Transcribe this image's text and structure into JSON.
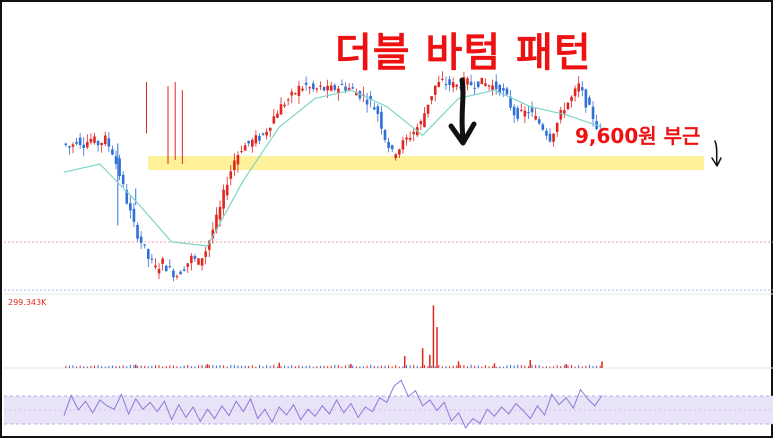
{
  "annotations": {
    "title": "더블 바텀 패턴",
    "level_label": "9,600원 부근",
    "volume_max_label": "299.343K"
  },
  "colors": {
    "title_red": "#ee1111",
    "highlight": "#fff09a",
    "up": "#e0261f",
    "down": "#2f6fd8",
    "moving_average": "#7fd4c8",
    "rsi_line": "#8c7ad9",
    "rsi_band": "#e9e3f8"
  },
  "chart_data": {
    "type": "candlestick",
    "title": "더블 바텀 패턴",
    "xlabel": "",
    "ylabel": "",
    "grid": false,
    "panels": [
      "price",
      "volume",
      "rsi"
    ],
    "price_path": [
      [
        0,
        0.7
      ],
      [
        2,
        0.68
      ],
      [
        4,
        0.72
      ],
      [
        6,
        0.7
      ],
      [
        8,
        0.72
      ],
      [
        10,
        0.7
      ],
      [
        12,
        0.72
      ],
      [
        14,
        0.66
      ],
      [
        16,
        0.55
      ],
      [
        18,
        0.42
      ],
      [
        20,
        0.3
      ],
      [
        22,
        0.22
      ],
      [
        24,
        0.14
      ],
      [
        26,
        0.09
      ],
      [
        28,
        0.12
      ],
      [
        30,
        0.08
      ],
      [
        32,
        0.06
      ],
      [
        34,
        0.1
      ],
      [
        36,
        0.14
      ],
      [
        38,
        0.12
      ],
      [
        40,
        0.18
      ],
      [
        42,
        0.28
      ],
      [
        44,
        0.38
      ],
      [
        46,
        0.52
      ],
      [
        48,
        0.62
      ],
      [
        50,
        0.68
      ],
      [
        52,
        0.7
      ],
      [
        54,
        0.72
      ],
      [
        56,
        0.74
      ],
      [
        58,
        0.8
      ],
      [
        60,
        0.86
      ],
      [
        62,
        0.9
      ],
      [
        64,
        0.93
      ],
      [
        66,
        0.97
      ],
      [
        68,
        0.98
      ],
      [
        70,
        0.96
      ],
      [
        72,
        0.97
      ],
      [
        74,
        0.96
      ],
      [
        76,
        0.97
      ],
      [
        78,
        0.98
      ],
      [
        80,
        0.97
      ],
      [
        82,
        0.95
      ],
      [
        84,
        0.93
      ],
      [
        86,
        0.9
      ],
      [
        88,
        0.85
      ],
      [
        90,
        0.73
      ],
      [
        92,
        0.65
      ],
      [
        94,
        0.68
      ],
      [
        96,
        0.72
      ],
      [
        98,
        0.76
      ],
      [
        100,
        0.8
      ],
      [
        102,
        0.9
      ],
      [
        104,
        0.98
      ],
      [
        106,
        1.0
      ],
      [
        108,
        0.99
      ],
      [
        110,
        0.98
      ],
      [
        112,
        1.0
      ],
      [
        114,
        0.99
      ],
      [
        116,
        1.0
      ],
      [
        118,
        0.99
      ],
      [
        120,
        0.98
      ],
      [
        122,
        0.97
      ],
      [
        124,
        0.92
      ],
      [
        126,
        0.85
      ],
      [
        128,
        0.84
      ],
      [
        130,
        0.86
      ],
      [
        132,
        0.82
      ],
      [
        134,
        0.78
      ],
      [
        136,
        0.73
      ],
      [
        138,
        0.8
      ],
      [
        140,
        0.88
      ],
      [
        142,
        0.92
      ],
      [
        144,
        0.98
      ],
      [
        146,
        0.9
      ],
      [
        148,
        0.83
      ],
      [
        150,
        0.74
      ]
    ],
    "moving_average_path": [
      [
        0,
        0.56
      ],
      [
        10,
        0.6
      ],
      [
        20,
        0.42
      ],
      [
        30,
        0.22
      ],
      [
        40,
        0.2
      ],
      [
        50,
        0.52
      ],
      [
        60,
        0.78
      ],
      [
        70,
        0.92
      ],
      [
        80,
        0.96
      ],
      [
        90,
        0.88
      ],
      [
        100,
        0.74
      ],
      [
        110,
        0.92
      ],
      [
        120,
        0.96
      ],
      [
        130,
        0.88
      ],
      [
        140,
        0.84
      ],
      [
        150,
        0.78
      ]
    ],
    "volume_spikes": [
      [
        20,
        0.05
      ],
      [
        40,
        0.06
      ],
      [
        60,
        0.08
      ],
      [
        80,
        0.06
      ],
      [
        95,
        0.18
      ],
      [
        100,
        0.3
      ],
      [
        102,
        0.2
      ],
      [
        103,
        0.95
      ],
      [
        104,
        0.62
      ],
      [
        110,
        0.1
      ],
      [
        120,
        0.07
      ],
      [
        130,
        0.12
      ],
      [
        140,
        0.06
      ],
      [
        150,
        0.1
      ]
    ],
    "rsi_path": [
      [
        0,
        0.35
      ],
      [
        2,
        0.7
      ],
      [
        4,
        0.45
      ],
      [
        6,
        0.6
      ],
      [
        8,
        0.4
      ],
      [
        10,
        0.62
      ],
      [
        12,
        0.52
      ],
      [
        14,
        0.46
      ],
      [
        16,
        0.72
      ],
      [
        18,
        0.38
      ],
      [
        20,
        0.64
      ],
      [
        22,
        0.46
      ],
      [
        24,
        0.58
      ],
      [
        26,
        0.42
      ],
      [
        28,
        0.6
      ],
      [
        30,
        0.28
      ],
      [
        32,
        0.54
      ],
      [
        34,
        0.32
      ],
      [
        36,
        0.5
      ],
      [
        38,
        0.25
      ],
      [
        40,
        0.46
      ],
      [
        42,
        0.3
      ],
      [
        44,
        0.52
      ],
      [
        46,
        0.35
      ],
      [
        48,
        0.6
      ],
      [
        50,
        0.42
      ],
      [
        52,
        0.64
      ],
      [
        54,
        0.3
      ],
      [
        56,
        0.46
      ],
      [
        58,
        0.24
      ],
      [
        60,
        0.5
      ],
      [
        62,
        0.36
      ],
      [
        64,
        0.54
      ],
      [
        66,
        0.28
      ],
      [
        68,
        0.46
      ],
      [
        70,
        0.34
      ],
      [
        72,
        0.52
      ],
      [
        74,
        0.38
      ],
      [
        76,
        0.62
      ],
      [
        78,
        0.4
      ],
      [
        80,
        0.56
      ],
      [
        82,
        0.32
      ],
      [
        84,
        0.5
      ],
      [
        86,
        0.42
      ],
      [
        88,
        0.66
      ],
      [
        90,
        0.58
      ],
      [
        92,
        0.86
      ],
      [
        94,
        0.96
      ],
      [
        96,
        0.68
      ],
      [
        98,
        0.78
      ],
      [
        100,
        0.52
      ],
      [
        102,
        0.62
      ],
      [
        104,
        0.44
      ],
      [
        106,
        0.58
      ],
      [
        108,
        0.26
      ],
      [
        110,
        0.4
      ],
      [
        112,
        0.14
      ],
      [
        114,
        0.3
      ],
      [
        116,
        0.22
      ],
      [
        118,
        0.46
      ],
      [
        120,
        0.34
      ],
      [
        122,
        0.5
      ],
      [
        124,
        0.38
      ],
      [
        126,
        0.56
      ],
      [
        128,
        0.44
      ],
      [
        130,
        0.3
      ],
      [
        132,
        0.52
      ],
      [
        134,
        0.36
      ],
      [
        136,
        0.72
      ],
      [
        138,
        0.54
      ],
      [
        140,
        0.66
      ],
      [
        142,
        0.48
      ],
      [
        144,
        0.8
      ],
      [
        146,
        0.64
      ],
      [
        148,
        0.52
      ],
      [
        150,
        0.7
      ]
    ],
    "note": "Price, volume and RSI panels carry no printed axis values; series are relative shape levels read from the picture (0 = panel bottom, 1 = panel top)."
  }
}
